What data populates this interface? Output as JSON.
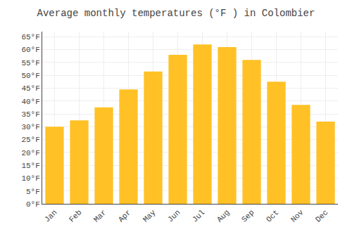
{
  "chart_data": {
    "type": "bar",
    "title": "Average monthly temperatures (°F ) in Colombier",
    "categories": [
      "Jan",
      "Feb",
      "Mar",
      "Apr",
      "May",
      "Jun",
      "Jul",
      "Aug",
      "Sep",
      "Oct",
      "Nov",
      "Dec"
    ],
    "values": [
      30,
      32.5,
      37.5,
      44.5,
      51.5,
      58,
      62,
      61,
      56,
      47.5,
      38.5,
      32
    ],
    "color": "#FFC125",
    "ylim": [
      0,
      67
    ],
    "yticks": [
      {
        "value": 0,
        "label": "0°F"
      },
      {
        "value": 5,
        "label": "5°F"
      },
      {
        "value": 10,
        "label": "10°F"
      },
      {
        "value": 15,
        "label": "15°F"
      },
      {
        "value": 20,
        "label": "20°F"
      },
      {
        "value": 25,
        "label": "25°F"
      },
      {
        "value": 30,
        "label": "30°F"
      },
      {
        "value": 35,
        "label": "35°F"
      },
      {
        "value": 40,
        "label": "40°F"
      },
      {
        "value": 45,
        "label": "45°F"
      },
      {
        "value": 50,
        "label": "50°F"
      },
      {
        "value": 55,
        "label": "55°F"
      },
      {
        "value": 60,
        "label": "60°F"
      },
      {
        "value": 65,
        "label": "65°F"
      }
    ],
    "grid": true
  }
}
